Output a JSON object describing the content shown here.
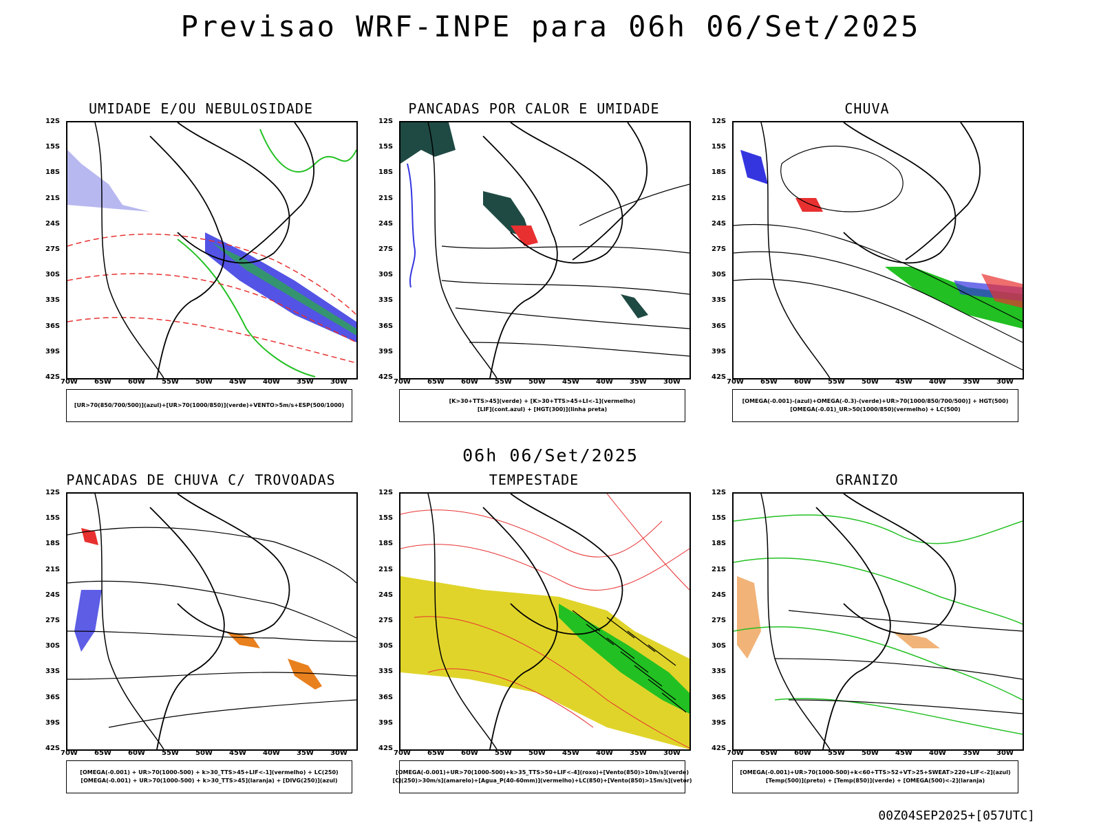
{
  "title": "Previsao WRF-INPE  para 06h 06/Set/2025",
  "middle_title": "06h 06/Set/2025",
  "footer": "00Z04SEP2025+[057UTC]",
  "lat_labels": [
    "12S",
    "15S",
    "18S",
    "21S",
    "24S",
    "27S",
    "30S",
    "33S",
    "36S",
    "39S",
    "42S"
  ],
  "lon_labels": [
    "70W",
    "65W",
    "60W",
    "55W",
    "50W",
    "45W",
    "40W",
    "35W",
    "30W"
  ],
  "colors": {
    "green": "#22c022",
    "red": "#e83030",
    "blue": "#3535e0",
    "lightblue": "#b8b8f0",
    "darkgreen": "#1f4a44",
    "orange": "#e8801e",
    "yellow": "#e0d42a"
  },
  "panels": [
    {
      "title": "UMIDADE E/OU NEBULOSIDADE",
      "legend": [
        "[UR>70(850/700/500)](azul)+[UR>70(1000/850)](verde)+VENTO>5m/s+ESP(500/1000)"
      ]
    },
    {
      "title": "PANCADAS POR CALOR E UMIDADE",
      "legend": [
        "[K>30+TTS>45](verde) + [K>30+TTS>45+LI<-1](vermelho)",
        "[LIF](cont.azul) + [HGT(300)](linha preta)"
      ]
    },
    {
      "title": "CHUVA",
      "legend": [
        "[OMEGA(-0.001)-(azul)+OMEGA(-0.3)-(verde)+UR>70(1000/850/700/500)] + HGT(500)",
        "[OMEGA(-0.01)_UR>50(1000/850)(vermelho) + LC(500)"
      ]
    },
    {
      "title": "PANCADAS DE CHUVA C/ TROVOADAS",
      "legend": [
        "[OMEGA(-0.001) + UR>70(1000-500) + k>30_TTS>45+LIF<-1](vermelho) + LC(250)",
        "[OMEGA(-0.001) + UR>70(1000-500) + k>30_TTS>45](laranja) + [DIVG(250)](azul)"
      ]
    },
    {
      "title": "TEMPESTADE",
      "legend": [
        "[OMEGA(-0.001)+UR>70(1000-500)+k>35_TTS>50+LIF<-4](roxo)+[Vento(850)>10m/s](verde)",
        "[CJ(250)>30m/s](amarelo)+[Agua_P(40-60mm)](vermelho)+LC(850)+[Vento(850)>15m/s](vetor)"
      ]
    },
    {
      "title": "GRANIZO",
      "legend": [
        "[OMEGA(-0.001)+UR>70(1000-500)+k<60+TTS>52+VT>25+SWEAT>220+LIF<-2](azul)",
        "[Temp(500)](preto) + [Temp(850)](verde) + [OMEGA(500)<-2](laranja)"
      ]
    }
  ]
}
